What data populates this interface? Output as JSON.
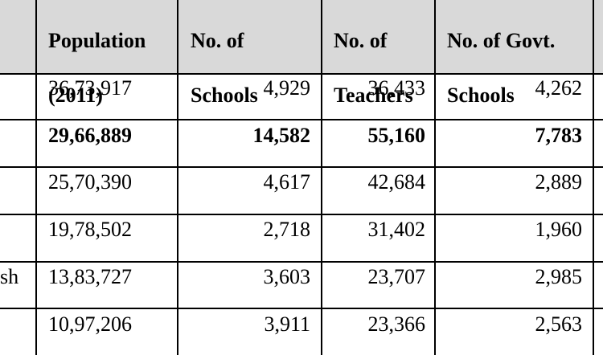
{
  "headers": [
    {
      "line1": "Population",
      "line2": "(2011)"
    },
    {
      "line1": "No. of",
      "line2": "Schools"
    },
    {
      "line1": "No. of",
      "line2": "Teachers"
    },
    {
      "line1": "No. of Govt.",
      "line2": "Schools"
    }
  ],
  "rows": [
    {
      "state": "",
      "population": "36,73,917",
      "schools": "4,929",
      "teachers": "36,433",
      "govt_schools": "4,262",
      "bold": false
    },
    {
      "state": "",
      "population": "29,66,889",
      "schools": "14,582",
      "teachers": "55,160",
      "govt_schools": "7,783",
      "bold": true
    },
    {
      "state": "",
      "population": "25,70,390",
      "schools": "4,617",
      "teachers": "42,684",
      "govt_schools": "2,889",
      "bold": false
    },
    {
      "state": "",
      "population": "19,78,502",
      "schools": "2,718",
      "teachers": "31,402",
      "govt_schools": "1,960",
      "bold": false
    },
    {
      "state": "sh",
      "population": "13,83,727",
      "schools": "3,603",
      "teachers": "23,707",
      "govt_schools": "2,985",
      "bold": false
    },
    {
      "state": "",
      "population": "10,97,206",
      "schools": "3,911",
      "teachers": "23,366",
      "govt_schools": "2,563",
      "bold": false
    }
  ]
}
